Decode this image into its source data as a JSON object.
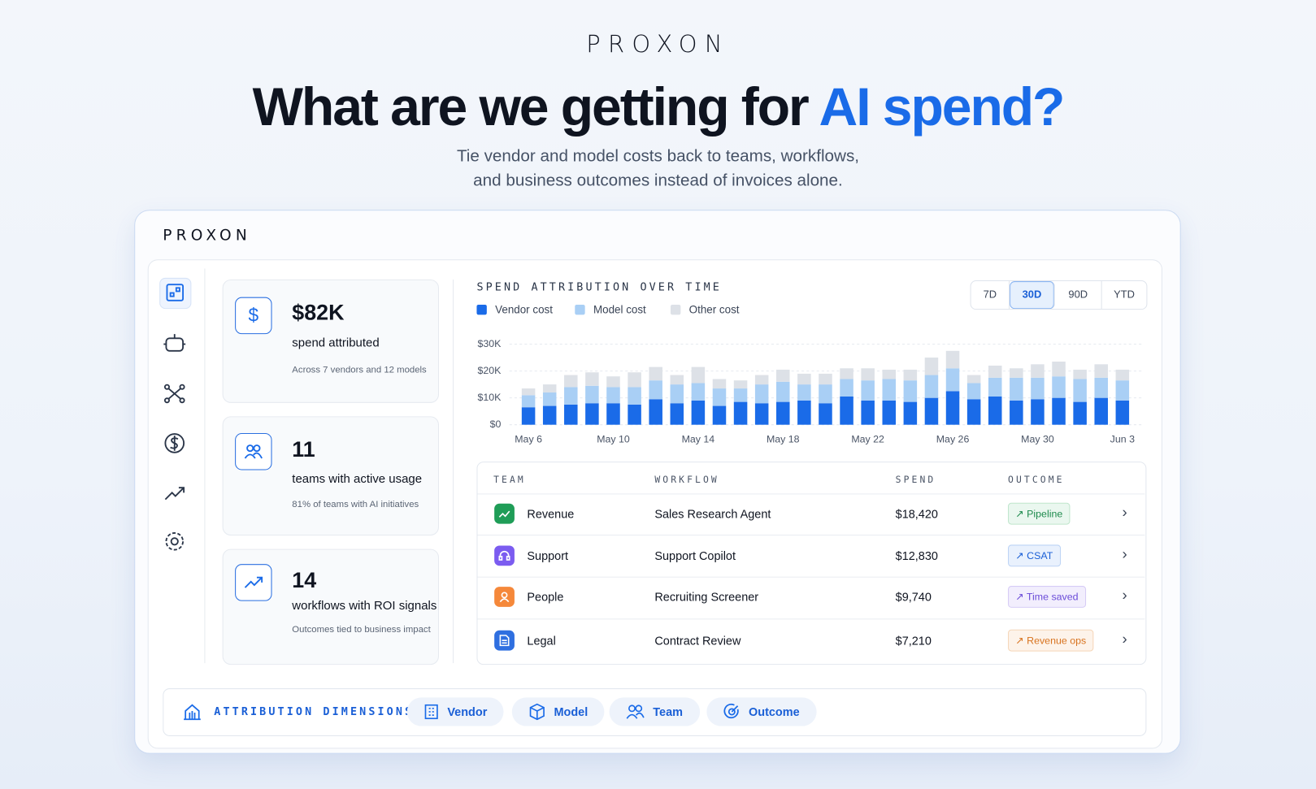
{
  "header": {
    "logo": "PROXON",
    "title": "What are we getting for ",
    "title_highlight": "AI spend?",
    "subtitle": [
      "Tie vendor and model costs back to teams, workflows,",
      "and business outcomes instead of invoices alone."
    ]
  },
  "app": {
    "logo": "PROXON",
    "stats": [
      {
        "value": "$82K",
        "label": "spend attributed",
        "note": "Across 7 vendors and 12 models"
      },
      {
        "value": "11",
        "label": "teams with active usage",
        "note": "81% of teams with AI initiatives"
      },
      {
        "value": "14",
        "label": "workflows with ROI signals",
        "note": "Outcomes tied to business impact"
      }
    ],
    "ranges": [
      "7D",
      "30D",
      "90D",
      "YTD"
    ],
    "table": {
      "columns": [
        "TEAM",
        "WORKFLOW",
        "SPEND",
        "OUTCOME"
      ],
      "rows": [
        [
          "Revenue",
          "Sales Research Agent",
          "$18,420",
          "Pipeline"
        ],
        [
          "Support",
          "Support Copilot",
          "$12,830",
          "CSAT"
        ],
        [
          "People",
          "Recruiting Screener",
          "$9,740",
          "Time saved"
        ],
        [
          "Legal",
          "Contract Review",
          "$7,210",
          "Revenue ops"
        ]
      ]
    },
    "dimensions": {
      "label": "ATTRIBUTION DIMENSIONS:",
      "items": [
        "Vendor",
        "Model",
        "Team",
        "Outcome"
      ]
    }
  },
  "chart_data": {
    "type": "bar",
    "stacked": true,
    "title": "SPEND ATTRIBUTION OVER TIME",
    "categories": [
      "May 6",
      null,
      null,
      null,
      "May 10",
      null,
      null,
      null,
      "May 14",
      null,
      null,
      null,
      "May 18",
      null,
      null,
      null,
      "May 22",
      null,
      null,
      null,
      "May 26",
      null,
      null,
      null,
      "May 30",
      null,
      null,
      null,
      "Jun 3"
    ],
    "series": [
      {
        "name": "Vendor cost",
        "color": "#1a6be8",
        "values": [
          6500,
          7000,
          7500,
          8000,
          8000,
          7500,
          9500,
          8000,
          9000,
          7000,
          8500,
          8000,
          8500,
          9000,
          8000,
          10500,
          9000,
          9000,
          8500,
          10000,
          12500,
          9500,
          10500,
          9000,
          9500,
          10000,
          8500,
          10000,
          9000
        ]
      },
      {
        "name": "Model cost",
        "color": "#a9cff5",
        "values": [
          4500,
          5000,
          6500,
          6500,
          6000,
          6500,
          7000,
          7000,
          6500,
          6500,
          5000,
          7000,
          7500,
          6000,
          7000,
          6500,
          7500,
          8000,
          8000,
          8500,
          8500,
          6000,
          7000,
          8500,
          8000,
          8000,
          8500,
          7500,
          7500
        ]
      },
      {
        "name": "Other cost",
        "color": "#dde1e7",
        "values": [
          2500,
          3000,
          4500,
          5000,
          4000,
          5500,
          5000,
          3500,
          6000,
          3500,
          3000,
          3500,
          4500,
          4000,
          4000,
          4000,
          4500,
          3500,
          4000,
          6500,
          6500,
          3000,
          4500,
          3500,
          5000,
          5500,
          3500,
          5000,
          4000
        ]
      }
    ],
    "ylim": [
      0,
      30000
    ],
    "yticks": [
      {
        "value": 0,
        "label": "$0"
      },
      {
        "value": 10000,
        "label": "$10K"
      },
      {
        "value": 20000,
        "label": "$20K"
      },
      {
        "value": 30000,
        "label": "$30K"
      }
    ],
    "grid": true
  }
}
